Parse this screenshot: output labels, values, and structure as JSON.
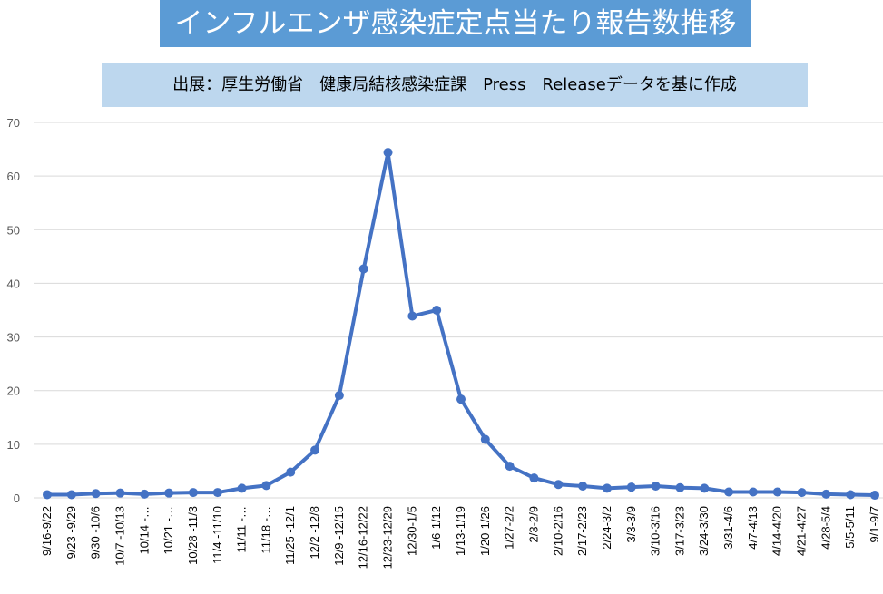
{
  "title": "インフルエンザ感染症定点当たり報告数推移",
  "subtitle": "出展：厚生労働省　健康局結核感染症課　Press　Releaseデータを基に作成",
  "colors": {
    "line": "#4472c4",
    "title_bg": "#5b9bd5",
    "subtitle_bg": "#bdd7ee",
    "grid": "#d9d9d9"
  },
  "chart_data": {
    "type": "line",
    "title": "インフルエンザ感染症定点当たり報告数推移",
    "subtitle": "出展：厚生労働省　健康局結核感染症課　Press　Releaseデータを基に作成",
    "xlabel": "",
    "ylabel": "",
    "ylim": [
      0,
      70
    ],
    "yticks": [
      0,
      10,
      20,
      30,
      40,
      50,
      60,
      70
    ],
    "grid": "horizontal",
    "legend": "none",
    "categories": [
      "9/16-9/22",
      "9/23 -9/29",
      "9/30 -10/6",
      "10/7 -10/13",
      "10/14 -…",
      "10/21 -…",
      "10/28 -11/3",
      "11/4 -11/10",
      "11/11 -…",
      "11/18 -…",
      "11/25 -12/1",
      "12/2 -12/8",
      "12/9 -12/15",
      "12/16-12/22",
      "12/23-12/29",
      "12/30-1/5",
      "1/6-1/12",
      "1/13-1/19",
      "1/20-1/26",
      "1/27-2/2",
      "2/3-2/9",
      "2/10-2/16",
      "2/17-2/23",
      "2/24-3/2",
      "3/3-3/9",
      "3/10-3/16",
      "3/17-3/23",
      "3/24-3/30",
      "3/31-4/6",
      "4/7-4/13",
      "4/14-4/20",
      "4/21-4/27",
      "4/28-5/4",
      "5/5-5/11",
      "9/1-9/7"
    ],
    "series": [
      {
        "values": [
          0.6,
          0.6,
          0.8,
          0.9,
          0.7,
          0.9,
          1.0,
          1.0,
          1.8,
          2.3,
          4.8,
          8.9,
          19.1,
          42.7,
          64.4,
          33.9,
          35.0,
          18.4,
          10.9,
          5.9,
          3.7,
          2.5,
          2.2,
          1.8,
          2.0,
          2.2,
          1.9,
          1.8,
          1.1,
          1.1,
          1.1,
          1.0,
          0.7,
          0.6,
          0.5
        ]
      }
    ]
  }
}
